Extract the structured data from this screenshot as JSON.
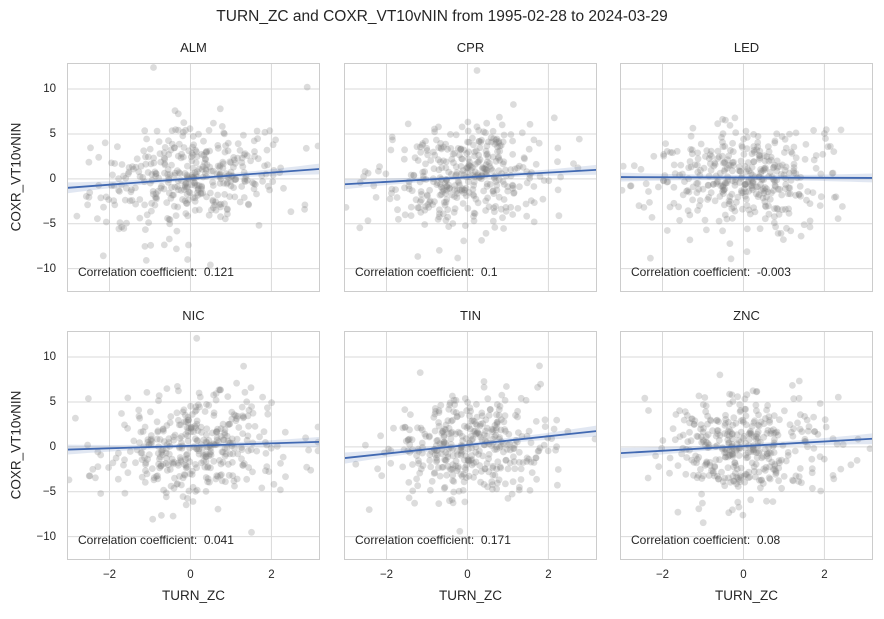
{
  "figure": {
    "title": "TURN_ZC and COXR_VT10vNIN from 1995-02-28 to 2024-03-29",
    "x_axis_label": "TURN_ZC",
    "y_axis_label": "COXR_VT10vNIN"
  },
  "colors": {
    "regression_line": "#4169b2",
    "confidence_band": "#4C72B0",
    "scatter_dot": "#7f7f7f",
    "grid_line": "#d9d9d9",
    "spine": "#cccccc",
    "text": "#262626",
    "background": "#ffffff"
  },
  "chart_data": {
    "type": "scatter",
    "title": "TURN_ZC and COXR_VT10vNIN from 1995-02-28 to 2024-03-29",
    "xlabel": "TURN_ZC",
    "ylabel": "COXR_VT10vNIN",
    "grid": true,
    "layout": "2 rows x 3 columns, shared axes",
    "xlim": [
      -3.05,
      3.2
    ],
    "ylim": [
      -12.6,
      12.9
    ],
    "x_tick_values": [
      -2,
      0,
      2
    ],
    "y_tick_values": [
      10,
      5,
      0,
      -5,
      -10
    ],
    "x_tick_labels": [
      "−2",
      "0",
      "2"
    ],
    "y_tick_labels": [
      "10",
      "5",
      "0",
      "−5",
      "−10"
    ],
    "scatter_style": {
      "n_points": 390,
      "x_std": 1.08,
      "y_std": 2.9
    },
    "panels": [
      {
        "name": "ALM",
        "correlation": 0.121,
        "correlation_label": "Correlation coefficient:  0.121",
        "regression": {
          "x0": -3.03,
          "y0": -1.0,
          "x1": 3.18,
          "y1": 1.1
        },
        "band": {
          "half_width_mid": 0.22,
          "half_width_end": 0.6
        }
      },
      {
        "name": "CPR",
        "correlation": 0.1,
        "correlation_label": "Correlation coefficient:  0.1",
        "regression": {
          "x0": -3.03,
          "y0": -0.6,
          "x1": 3.18,
          "y1": 1.0
        },
        "band": {
          "half_width_mid": 0.22,
          "half_width_end": 0.55
        }
      },
      {
        "name": "LED",
        "correlation": -0.003,
        "correlation_label": "Correlation coefficient:  -0.003",
        "regression": {
          "x0": -3.03,
          "y0": 0.2,
          "x1": 3.18,
          "y1": 0.1
        },
        "band": {
          "half_width_mid": 0.28,
          "half_width_end": 0.5
        }
      },
      {
        "name": "NIC",
        "correlation": 0.041,
        "correlation_label": "Correlation coefficient:  0.041",
        "regression": {
          "x0": -3.03,
          "y0": -0.3,
          "x1": 3.18,
          "y1": 0.55
        },
        "band": {
          "half_width_mid": 0.22,
          "half_width_end": 0.55
        }
      },
      {
        "name": "TIN",
        "correlation": 0.171,
        "correlation_label": "Correlation coefficient:  0.171",
        "regression": {
          "x0": -3.03,
          "y0": -1.25,
          "x1": 3.18,
          "y1": 1.75
        },
        "band": {
          "half_width_mid": 0.25,
          "half_width_end": 0.62
        }
      },
      {
        "name": "ZNC",
        "correlation": 0.08,
        "correlation_label": "Correlation coefficient:  0.08",
        "regression": {
          "x0": -3.03,
          "y0": -0.7,
          "x1": 3.18,
          "y1": 0.9
        },
        "band": {
          "half_width_mid": 0.25,
          "half_width_end": 0.6
        }
      }
    ]
  }
}
